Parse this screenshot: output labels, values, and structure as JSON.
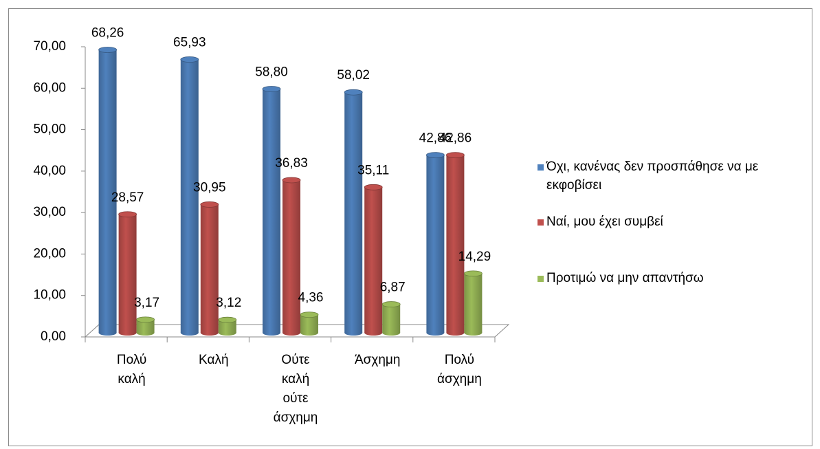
{
  "chart_data": {
    "type": "bar3d",
    "categories": [
      "Πολύ καλή",
      "Καλή",
      "Ούτε καλή ούτε άσχημη",
      "Άσχημη",
      "Πολύ άσχημη"
    ],
    "series": [
      {
        "name": "Όχι, κανένας δεν προσπάθησε να με εκφοβίσει",
        "color": "#4f81bd",
        "values": [
          68.26,
          65.93,
          58.8,
          58.02,
          42.86
        ],
        "value_labels": [
          "68,26",
          "65,93",
          "58,80",
          "58,02",
          "42,86"
        ]
      },
      {
        "name": "Ναί, μου έχει συμβεί",
        "color": "#c0504d",
        "values": [
          28.57,
          30.95,
          36.83,
          35.11,
          42.86
        ],
        "value_labels": [
          "28,57",
          "30,95",
          "36,83",
          "35,11",
          "42,86"
        ]
      },
      {
        "name": "Προτιμώ να μην απαντήσω",
        "color": "#9bbb59",
        "values": [
          3.17,
          3.12,
          4.36,
          6.87,
          14.29
        ],
        "value_labels": [
          "3,17",
          "3,12",
          "4,36",
          "6,87",
          "14,29"
        ]
      }
    ],
    "ylim": [
      0,
      70
    ],
    "yticks": [
      {
        "value": 0,
        "label": "0,00"
      },
      {
        "value": 10,
        "label": "10,00"
      },
      {
        "value": 20,
        "label": "20,00"
      },
      {
        "value": 30,
        "label": "30,00"
      },
      {
        "value": 40,
        "label": "40,00"
      },
      {
        "value": 50,
        "label": "50,00"
      },
      {
        "value": 60,
        "label": "60,00"
      },
      {
        "value": 70,
        "label": "70,00"
      }
    ],
    "legend": "right",
    "grid": false
  }
}
